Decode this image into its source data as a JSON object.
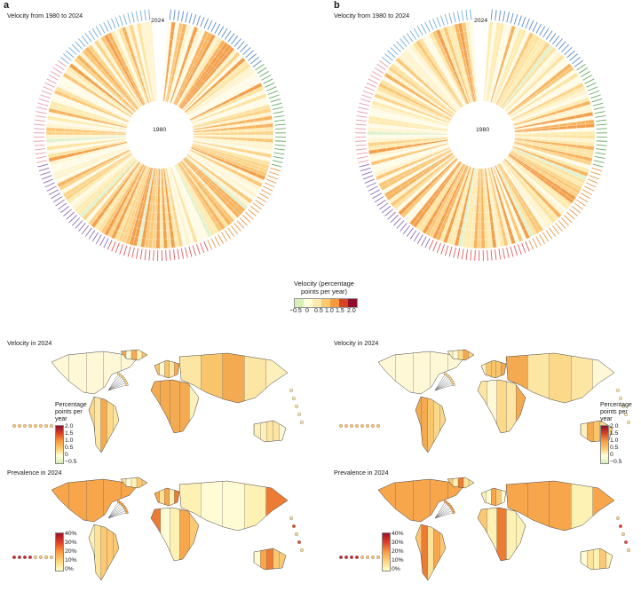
{
  "panels": [
    {
      "letter": "a",
      "circle_title": "Velocity from 1980 to 2024",
      "outer_year": "2024",
      "inner_year": "1980",
      "map1_title": "Velocity in 2024",
      "map2_title": "Prevalence in 2024"
    },
    {
      "letter": "b",
      "circle_title": "Velocity from 1980 to 2024",
      "outer_year": "2024",
      "inner_year": "1980",
      "map1_title": "Velocity in 2024",
      "map2_title": "Prevalence in 2024"
    }
  ],
  "velocity_legend": {
    "title": "Velocity (percentage points per year)",
    "ticks": [
      "−0.5",
      "0",
      "0.5",
      "1.0",
      "1.5",
      "2.0"
    ],
    "colors": [
      "#d6efb5",
      "#ffffd9",
      "#fdeab0",
      "#fec96c",
      "#f59a3f",
      "#d94325",
      "#8f0d2a"
    ]
  },
  "map_velocity_legend": {
    "title": "Percentage points per year",
    "ticks": [
      "2.0",
      "1.5",
      "1.0",
      "0.5",
      "0",
      "−0.5"
    ]
  },
  "map_prevalence_legend": {
    "ticks": [
      "40%",
      "30%",
      "20%",
      "10%",
      "0%"
    ]
  },
  "region_colors": [
    "#5aa0d8",
    "#3d78c4",
    "#4e9e4a",
    "#e08a2c",
    "#d94040",
    "#7a55b0",
    "#e88aa0"
  ]
}
